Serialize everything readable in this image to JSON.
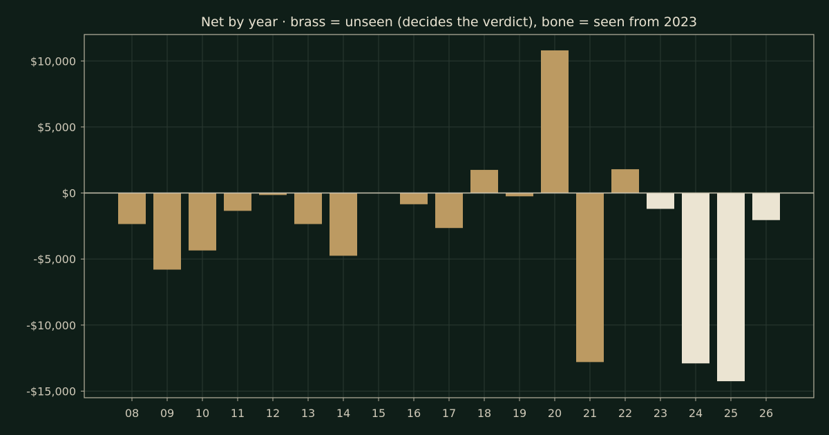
{
  "chart_data": {
    "type": "bar",
    "title": "Net by year  ·  brass = unseen (decides the verdict), bone = seen from 2023",
    "xlabel": "",
    "ylabel": "",
    "categories": [
      "08",
      "09",
      "10",
      "11",
      "12",
      "13",
      "14",
      "15",
      "16",
      "17",
      "18",
      "19",
      "20",
      "21",
      "22",
      "23",
      "24",
      "25",
      "26"
    ],
    "values": [
      -2350,
      -5800,
      -4350,
      -1350,
      -150,
      -2350,
      -4750,
      0,
      -850,
      -2650,
      1750,
      -250,
      10800,
      -12800,
      1800,
      -1200,
      -12900,
      -14250,
      -2050
    ],
    "groups": [
      "unseen",
      "unseen",
      "unseen",
      "unseen",
      "unseen",
      "unseen",
      "unseen",
      "unseen",
      "unseen",
      "unseen",
      "unseen",
      "unseen",
      "unseen",
      "unseen",
      "unseen",
      "seen",
      "seen",
      "seen",
      "seen"
    ],
    "colors": {
      "unseen": "#bc9a62",
      "seen": "#ebe4d2"
    },
    "ylim": [
      -15500,
      12000
    ],
    "yticks": [
      10000,
      5000,
      0,
      -5000,
      -10000,
      -15000
    ],
    "ytick_labels": [
      "$10,000",
      "$5,000",
      "$0",
      "-$5,000",
      "-$10,000",
      "-$15,000"
    ],
    "grid": true
  }
}
